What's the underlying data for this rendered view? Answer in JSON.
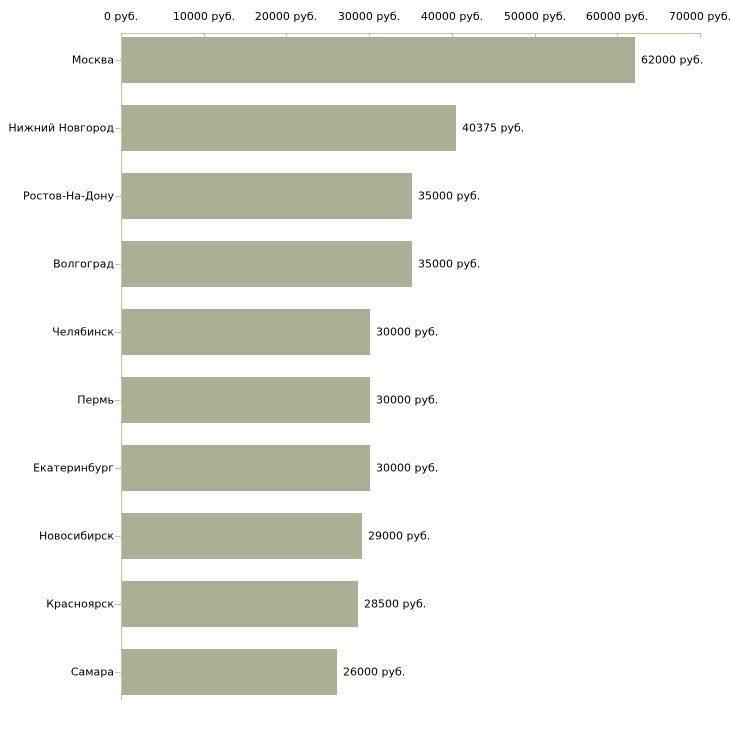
{
  "chart_data": {
    "type": "bar",
    "orientation": "horizontal",
    "title": "",
    "xlabel": "",
    "ylabel": "",
    "unit": "руб.",
    "categories": [
      "Москва",
      "Нижний Новгород",
      "Ростов-На-Дону",
      "Волгоград",
      "Челябинск",
      "Пермь",
      "Екатеринбург",
      "Новосибирск",
      "Красноярск",
      "Самара"
    ],
    "values": [
      62000,
      40375,
      35000,
      35000,
      30000,
      30000,
      30000,
      29000,
      28500,
      26000
    ],
    "value_labels": [
      "62000 руб.",
      "40375 руб.",
      "35000 руб.",
      "35000 руб.",
      "30000 руб.",
      "30000 руб.",
      "30000 руб.",
      "29000 руб.",
      "28500 руб.",
      "26000 руб."
    ],
    "xlim": [
      0,
      70000
    ],
    "x_ticks": [
      0,
      10000,
      20000,
      30000,
      40000,
      50000,
      60000,
      70000
    ],
    "x_tick_labels": [
      "0 руб.",
      "10000 руб.",
      "20000 руб.",
      "30000 руб.",
      "40000 руб.",
      "50000 руб.",
      "60000 руб.",
      "70000 руб."
    ],
    "grid": false,
    "legend": null,
    "colors": {
      "bar_fill": "#abaf95",
      "axis_line": "#c6c6a3",
      "text": "#000000",
      "background": "#ffffff"
    }
  }
}
